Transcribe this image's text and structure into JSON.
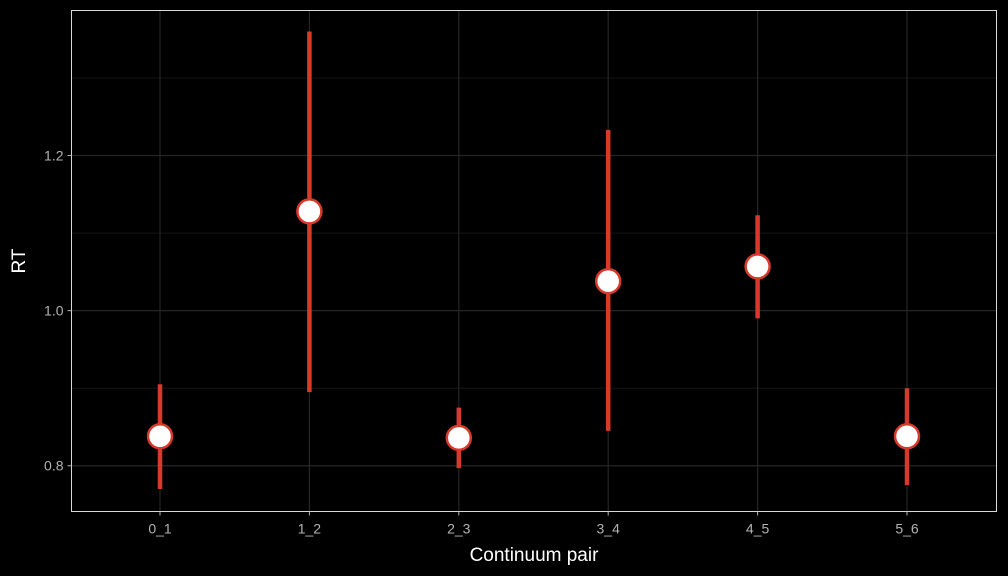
{
  "colors": {
    "background": "#000000",
    "panel_border": "#d9d9d9",
    "grid_major": "#262626",
    "grid_minor": "#151515",
    "tick_label": "#b3b3b3",
    "axis_title": "#ffffff",
    "errorbar": "#d73a2b",
    "point_fill": "#ffffff",
    "point_stroke": "#d73a2b"
  },
  "chart_data": {
    "type": "scatter",
    "xlabel": "Continuum pair",
    "ylabel": "RT",
    "categories": [
      "0_1",
      "1_2",
      "2_3",
      "3_4",
      "4_5",
      "5_6"
    ],
    "values": [
      0.838,
      1.128,
      0.836,
      1.038,
      1.057,
      0.838
    ],
    "lower": [
      0.77,
      0.895,
      0.797,
      0.845,
      0.99,
      0.775
    ],
    "upper": [
      0.905,
      1.36,
      0.875,
      1.233,
      1.123,
      0.9
    ],
    "ylim": [
      0.741,
      1.387
    ],
    "y_ticks": [
      0.8,
      1.0,
      1.2
    ],
    "y_tick_labels": [
      "0.8",
      "1.0",
      "1.2"
    ],
    "grid": true,
    "legend": "none"
  }
}
